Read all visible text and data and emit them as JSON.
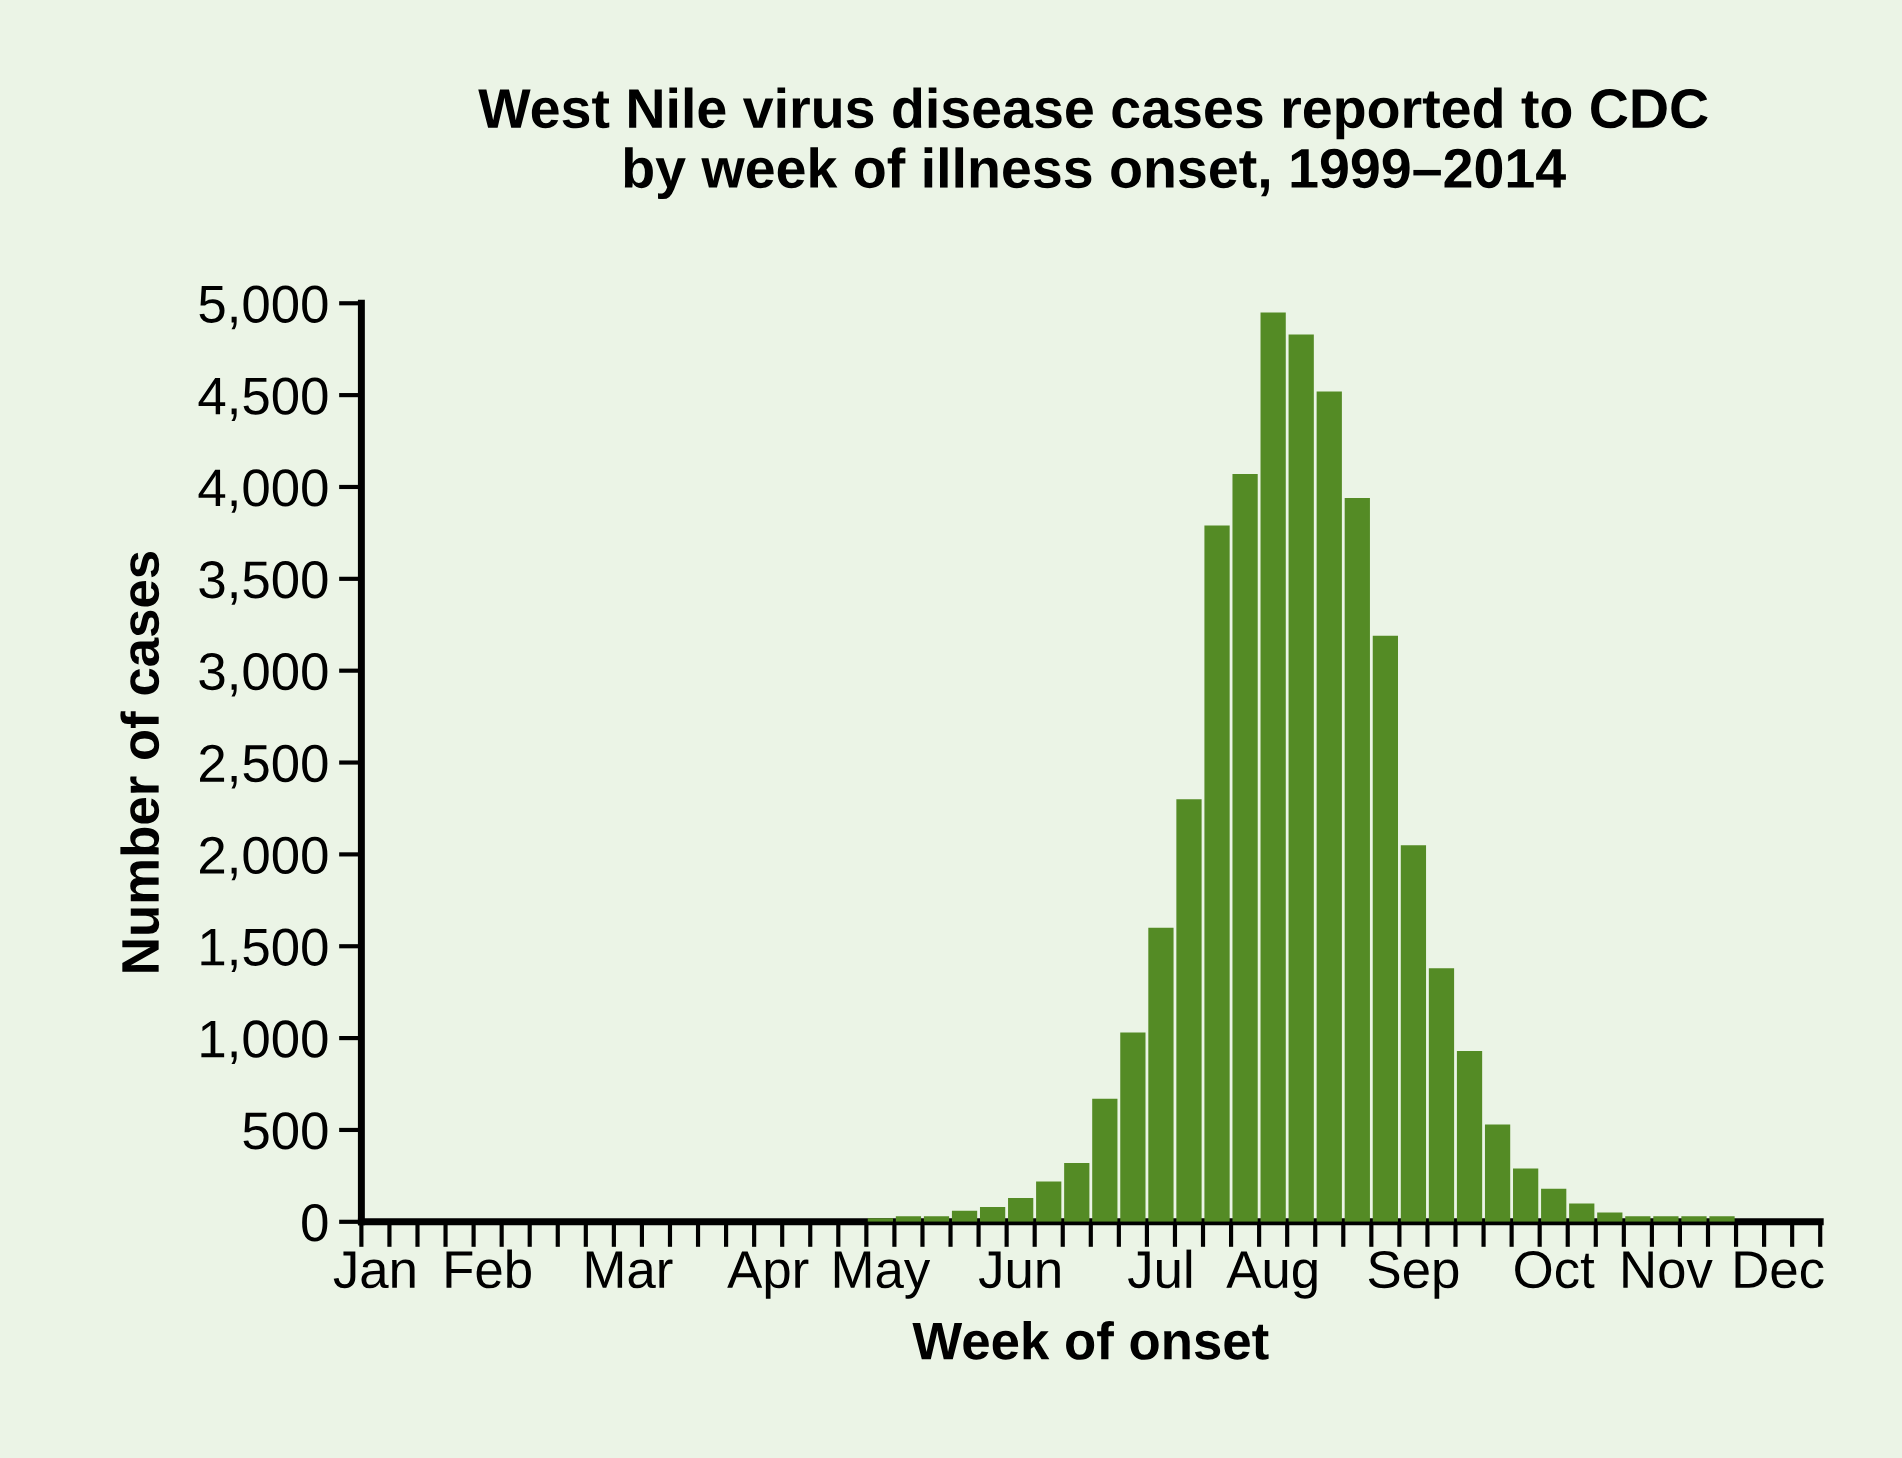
{
  "chart_data": {
    "type": "bar",
    "title": "West Nile virus disease cases reported to CDC\nby week of illness onset, 1999–2014",
    "xlabel": "Week of onset",
    "ylabel": "Number of cases",
    "categories": [
      "Jan",
      null,
      null,
      null,
      "Feb",
      null,
      null,
      null,
      null,
      "Mar",
      null,
      null,
      null,
      null,
      "Apr",
      null,
      null,
      null,
      "May",
      null,
      null,
      null,
      null,
      "Jun",
      null,
      null,
      null,
      null,
      "Jul",
      null,
      null,
      null,
      "Aug",
      null,
      null,
      null,
      null,
      "Sep",
      null,
      null,
      null,
      null,
      "Oct",
      null,
      null,
      null,
      "Nov",
      null,
      null,
      null,
      "Dec",
      null
    ],
    "values": [
      0,
      0,
      0,
      0,
      0,
      0,
      0,
      0,
      0,
      0,
      0,
      0,
      0,
      0,
      0,
      0,
      0,
      0,
      20,
      30,
      30,
      60,
      80,
      130,
      220,
      320,
      670,
      1030,
      1600,
      2300,
      3790,
      4070,
      4950,
      4830,
      4520,
      3940,
      3190,
      2050,
      1380,
      930,
      530,
      290,
      180,
      100,
      50,
      30,
      30,
      30,
      30,
      0,
      0,
      0
    ],
    "color": "#548b25",
    "ylim": [
      0,
      5000
    ],
    "yticks": [
      0,
      {
        "value": 500,
        "label": "500"
      },
      {
        "value": 1000,
        "label": "1,000"
      },
      {
        "value": 1500,
        "label": "1,500"
      },
      {
        "value": 2000,
        "label": "2,000"
      },
      {
        "value": 2500,
        "label": "2,500"
      },
      {
        "value": 3000,
        "label": "3,000"
      },
      {
        "value": 3500,
        "label": "3,500"
      },
      {
        "value": 4000,
        "label": "4,000"
      },
      {
        "value": 4500,
        "label": "4,500"
      },
      {
        "value": 5000,
        "label": "5,000"
      }
    ]
  }
}
